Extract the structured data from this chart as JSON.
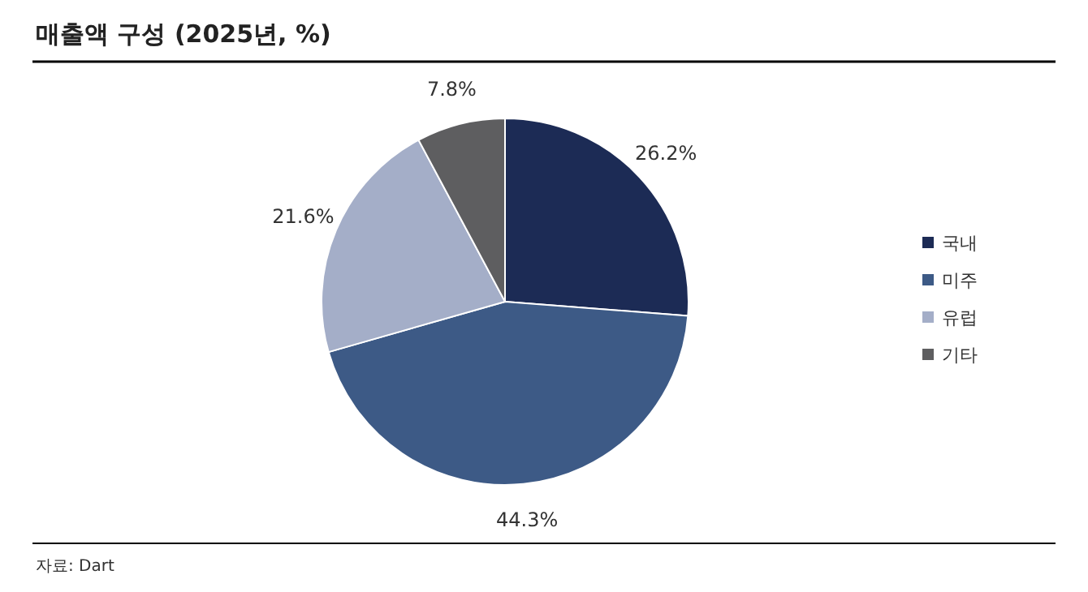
{
  "chart_data": {
    "type": "pie",
    "title": "매출액 구성 (2025년, %)",
    "categories": [
      "국내",
      "미주",
      "유럽",
      "기타"
    ],
    "values": [
      26.2,
      44.3,
      21.6,
      7.8
    ],
    "colors": [
      "#1c2b55",
      "#3d5a86",
      "#a4aec8",
      "#5e5e60"
    ],
    "value_labels": [
      "26.2%",
      "44.3%",
      "21.6%",
      "7.8%"
    ],
    "legend": "right",
    "annotations": [
      "자료: Dart"
    ]
  }
}
